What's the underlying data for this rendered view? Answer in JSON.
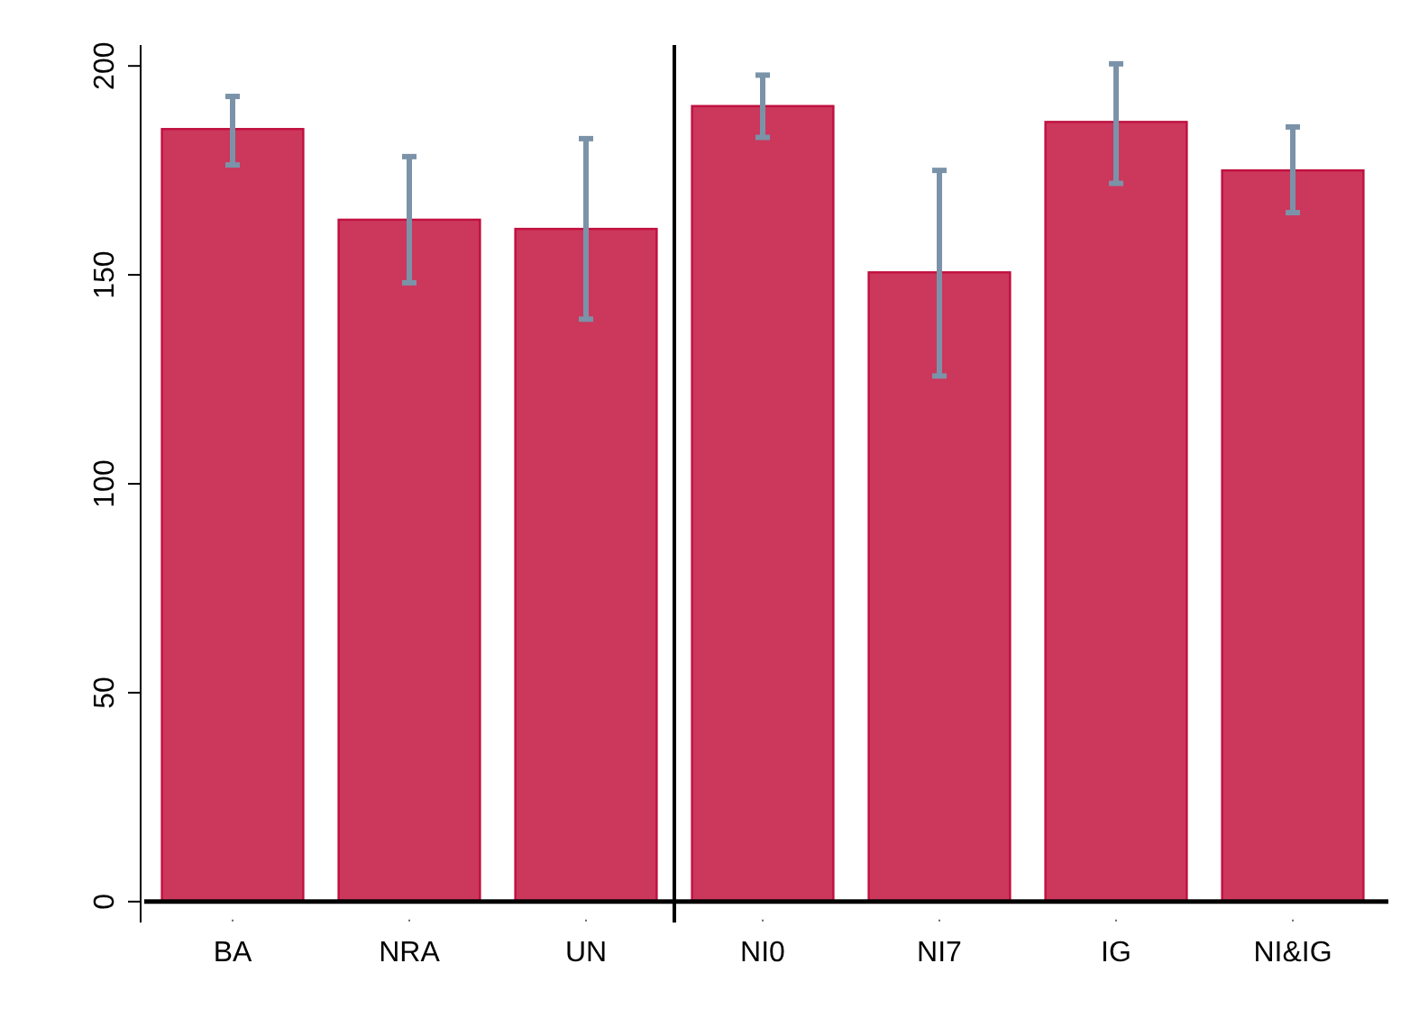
{
  "chart_data": {
    "type": "bar",
    "categories": [
      "BA",
      "NRA",
      "UN",
      "NI0",
      "NI7",
      "IG",
      "NI&IG"
    ],
    "values": [
      184.9,
      163.2,
      161,
      190.4,
      150.6,
      186.6,
      175
    ],
    "errors": [
      [
        176.3,
        192.7
      ],
      [
        148.1,
        178.3
      ],
      [
        139.4,
        182.6
      ],
      [
        182.9,
        197.8
      ],
      [
        125.8,
        175
      ],
      [
        171.9,
        200.5
      ],
      [
        164.9,
        185.4
      ]
    ],
    "color": "#cc375c",
    "ylim": [
      -5,
      205
    ],
    "yticks": [
      0,
      50,
      100,
      150,
      200
    ],
    "grid": false
  }
}
